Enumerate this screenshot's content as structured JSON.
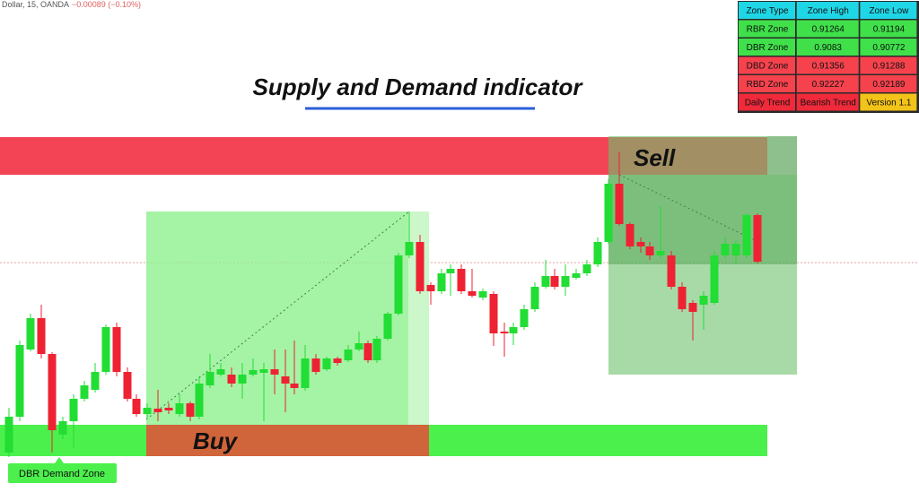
{
  "header": {
    "symbol": "Dollar, 15, OANDA",
    "change": "−0.00089 (−0.10%)"
  },
  "title": "Supply and Demand indicator",
  "labels": {
    "sell": "Sell",
    "buy": "Buy",
    "zone_tag": "DBR Demand Zone"
  },
  "table": {
    "columns": [
      "Zone Type",
      "Zone High",
      "Zone Low"
    ],
    "rows": [
      [
        "RBR Zone",
        0.91264,
        0.91194
      ],
      [
        "DBR Zone",
        0.9083,
        0.90772
      ],
      [
        "DBD Zone",
        0.91356,
        0.91288
      ],
      [
        "RBD Zone",
        0.92227,
        0.92189
      ],
      [
        "Daily Trend",
        "Bearish Trend",
        "Version 1.1"
      ]
    ]
  }
}
